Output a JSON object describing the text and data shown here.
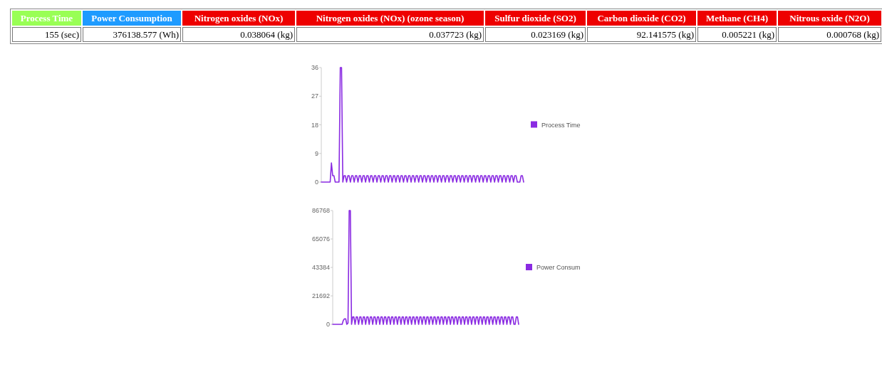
{
  "chart_data": [
    {
      "type": "other",
      "categories": [
        "Process Time",
        "Power Consumption",
        "Nitrogen oxides (NOx)",
        "Nitrogen oxides (NOx) (ozone season)",
        "Sulfur dioxide (SO2)",
        "Carbon dioxide (CO2)",
        "Methane (CH4)",
        "Nitrous oxide (N2O)"
      ],
      "annotations": [
        "155 (sec)",
        "376138.577 (Wh)",
        "0.038064 (kg)",
        "0.037723 (kg)",
        "0.023169 (kg)",
        "92.141575 (kg)",
        "0.005221 (kg)",
        "0.000768 (kg)"
      ],
      "colors": [
        "#99ff55",
        "#1e9bff",
        "#ee0000",
        "#ee0000",
        "#ee0000",
        "#ee0000",
        "#ee0000",
        "#ee0000"
      ]
    },
    {
      "type": "line",
      "categories": [
        null,
        null,
        null,
        null,
        null,
        null,
        null,
        null,
        null,
        null,
        null,
        null,
        null,
        null,
        null,
        null,
        null,
        null,
        null,
        null,
        null,
        null,
        null,
        null,
        null,
        null,
        null,
        null,
        null,
        null,
        null,
        null,
        null,
        null,
        null,
        null,
        null,
        null,
        null,
        null,
        null,
        null,
        null,
        null,
        null,
        null,
        null,
        null,
        null,
        null,
        null,
        null,
        null,
        null,
        null,
        null,
        null,
        null,
        null,
        null,
        null,
        null,
        null,
        null,
        null,
        null,
        null,
        null,
        null,
        null,
        null,
        null,
        null,
        null,
        null,
        null,
        null,
        null,
        null,
        null,
        null,
        null,
        null,
        null,
        null,
        null,
        null,
        null,
        null,
        null,
        null,
        null,
        null,
        null,
        null,
        null,
        null,
        null,
        null,
        null,
        null,
        null,
        null,
        null,
        null,
        null,
        null,
        null,
        null,
        null,
        null,
        null,
        null,
        null,
        null,
        null,
        null,
        null,
        null,
        null,
        null,
        null,
        null,
        null,
        null,
        null,
        null,
        null,
        null,
        null,
        null,
        null,
        null,
        null,
        null,
        null,
        null,
        null,
        null,
        null,
        null,
        null,
        null,
        null,
        null,
        null,
        null,
        null,
        null,
        null,
        null,
        null,
        null,
        null,
        null,
        null,
        null,
        null,
        null,
        null,
        null
      ],
      "series": [
        {
          "name": "Process Time",
          "color": "#8a2be2",
          "values": [
            0,
            0,
            0,
            0,
            0,
            0,
            0,
            0,
            6,
            2,
            2,
            0,
            0,
            0,
            0,
            36,
            36,
            0,
            2,
            2,
            0,
            2,
            2,
            0,
            2,
            2,
            0,
            2,
            2,
            0,
            2,
            2,
            0,
            2,
            2,
            0,
            2,
            2,
            0,
            2,
            2,
            0,
            2,
            2,
            0,
            2,
            2,
            0,
            2,
            2,
            0,
            2,
            2,
            0,
            2,
            2,
            0,
            2,
            2,
            0,
            2,
            2,
            0,
            2,
            2,
            0,
            2,
            2,
            0,
            2,
            2,
            0,
            2,
            2,
            0,
            2,
            2,
            0,
            2,
            2,
            0,
            2,
            2,
            0,
            2,
            2,
            0,
            2,
            2,
            0,
            2,
            2,
            0,
            2,
            2,
            0,
            2,
            2,
            0,
            2,
            2,
            0,
            2,
            2,
            0,
            2,
            2,
            0,
            2,
            2,
            0,
            2,
            2,
            0,
            2,
            2,
            0,
            2,
            2,
            0,
            2,
            2,
            0,
            2,
            2,
            0,
            2,
            2,
            0,
            2,
            2,
            0,
            2,
            2,
            0,
            2,
            2,
            0,
            2,
            2,
            0,
            2,
            2,
            0,
            2,
            2,
            0,
            2,
            2,
            0,
            2,
            2,
            0,
            2,
            2,
            0,
            0,
            0,
            2,
            2,
            0
          ]
        }
      ],
      "ylim": [
        0,
        36
      ],
      "yticks": [
        0,
        9,
        18,
        27,
        36
      ],
      "legend": "right",
      "tick_labels": "y"
    },
    {
      "type": "line",
      "categories": [
        null,
        null,
        null,
        null,
        null,
        null,
        null,
        null,
        null,
        null,
        null,
        null,
        null,
        null,
        null,
        null,
        null,
        null,
        null,
        null,
        null,
        null,
        null,
        null,
        null,
        null,
        null,
        null,
        null,
        null,
        null,
        null,
        null,
        null,
        null,
        null,
        null,
        null,
        null,
        null,
        null,
        null,
        null,
        null,
        null,
        null,
        null,
        null,
        null,
        null,
        null,
        null,
        null,
        null,
        null,
        null,
        null,
        null,
        null,
        null,
        null,
        null,
        null,
        null,
        null,
        null,
        null,
        null,
        null,
        null,
        null,
        null,
        null,
        null,
        null,
        null,
        null,
        null,
        null,
        null,
        null,
        null,
        null,
        null,
        null,
        null,
        null,
        null,
        null,
        null,
        null,
        null,
        null,
        null,
        null,
        null,
        null,
        null,
        null,
        null,
        null,
        null,
        null,
        null,
        null,
        null,
        null,
        null,
        null,
        null,
        null,
        null,
        null,
        null,
        null,
        null,
        null,
        null,
        null,
        null,
        null,
        null,
        null,
        null,
        null,
        null,
        null,
        null,
        null,
        null,
        null,
        null,
        null,
        null,
        null,
        null,
        null,
        null,
        null,
        null,
        null,
        null,
        null,
        null,
        null,
        null,
        null,
        null,
        null,
        null,
        null,
        null,
        null,
        null,
        null,
        null,
        null,
        null,
        null
      ],
      "series": [
        {
          "name": "Power Consum",
          "color": "#8a2be2",
          "values": [
            0,
            0,
            0,
            0,
            0,
            0,
            0,
            0,
            0,
            3000,
            4200,
            4200,
            0,
            1000,
            86768,
            86768,
            0,
            5600,
            5600,
            0,
            5600,
            5600,
            0,
            5600,
            5600,
            0,
            5600,
            5600,
            0,
            5600,
            5600,
            0,
            5600,
            5600,
            0,
            5600,
            5600,
            0,
            5600,
            5600,
            0,
            5600,
            5600,
            0,
            5600,
            5600,
            0,
            5600,
            5600,
            0,
            5600,
            5600,
            0,
            5600,
            5600,
            0,
            5600,
            5600,
            0,
            5600,
            5600,
            0,
            5600,
            5600,
            0,
            5600,
            5600,
            0,
            5600,
            5600,
            0,
            5600,
            5600,
            0,
            5600,
            5600,
            0,
            5600,
            5600,
            0,
            5600,
            5600,
            0,
            5600,
            5600,
            0,
            5600,
            5600,
            0,
            5600,
            5600,
            0,
            5600,
            5600,
            0,
            5600,
            5600,
            0,
            5600,
            5600,
            0,
            5600,
            5600,
            0,
            5600,
            5600,
            0,
            5600,
            5600,
            0,
            5600,
            5600,
            0,
            5600,
            5600,
            0,
            5600,
            5600,
            0,
            5600,
            5600,
            0,
            5600,
            5600,
            0,
            5600,
            5600,
            0,
            5600,
            5600,
            0,
            5600,
            5600,
            0,
            5600,
            5600,
            0,
            5600,
            5600,
            0,
            5600,
            5600,
            0,
            5600,
            5600,
            0,
            5600,
            5600,
            0,
            5600,
            5600,
            0,
            5600,
            5600,
            0,
            0,
            5600,
            5600,
            0
          ]
        }
      ],
      "ylim": [
        0,
        86768
      ],
      "yticks": [
        0,
        21692,
        43384,
        65076,
        86768
      ],
      "legend": "right",
      "tick_labels": "y"
    }
  ]
}
